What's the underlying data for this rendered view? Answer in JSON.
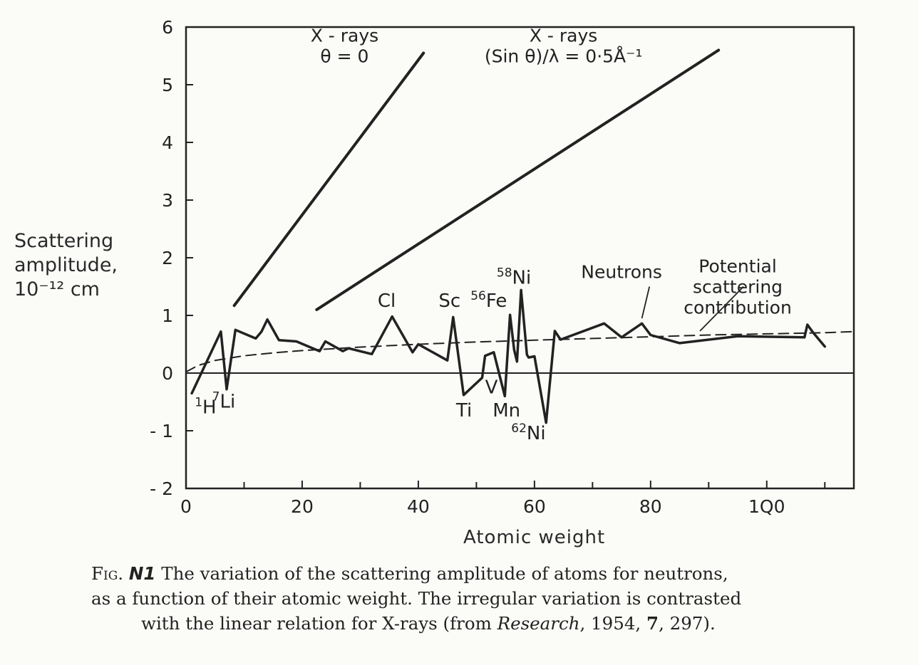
{
  "chart_data": {
    "type": "line",
    "xlabel": "Atomic weight",
    "ylabel_lines": [
      "Scattering",
      "amplitude,",
      "10⁻¹² cm"
    ],
    "xlim": [
      0,
      115
    ],
    "ylim": [
      -2,
      6
    ],
    "x_ticks": [
      {
        "value": 0,
        "label": "0"
      },
      {
        "value": 20,
        "label": "20"
      },
      {
        "value": 40,
        "label": "40"
      },
      {
        "value": 60,
        "label": "60"
      },
      {
        "value": 80,
        "label": "80"
      },
      {
        "value": 100,
        "label": "1Q0"
      }
    ],
    "x_minor_ticks": [
      10,
      30,
      50,
      70,
      90,
      110
    ],
    "y_ticks": [
      {
        "value": 6,
        "label": "6"
      },
      {
        "value": 5,
        "label": "5"
      },
      {
        "value": 4,
        "label": "4"
      },
      {
        "value": 3,
        "label": "3"
      },
      {
        "value": 2,
        "label": "2"
      },
      {
        "value": 1,
        "label": "1"
      },
      {
        "value": 0,
        "label": "0"
      },
      {
        "value": -1,
        "label": "- 1"
      },
      {
        "value": -2,
        "label": "- 2"
      }
    ],
    "grid": false,
    "series": [
      {
        "name": "Neutrons",
        "style": "solid",
        "x": [
          1,
          6,
          7,
          8.5,
          12,
          13,
          14,
          16,
          19,
          23,
          24,
          27,
          28,
          32,
          35.5,
          39,
          40,
          45,
          46,
          47.8,
          51,
          51.5,
          53,
          54.9,
          55.8,
          56.5,
          57,
          57.7,
          58.7,
          59,
          60,
          62,
          63.5,
          64.5,
          72,
          75,
          78.5,
          80,
          85,
          95,
          106.5,
          107,
          108,
          110
        ],
        "y": [
          -0.35,
          0.72,
          -0.28,
          0.75,
          0.6,
          0.72,
          0.93,
          0.57,
          0.55,
          0.38,
          0.55,
          0.38,
          0.43,
          0.33,
          0.98,
          0.36,
          0.5,
          0.22,
          0.97,
          -0.38,
          -0.08,
          0.3,
          0.36,
          -0.4,
          1.01,
          0.4,
          0.2,
          1.44,
          0.32,
          0.27,
          0.29,
          -0.86,
          0.73,
          0.58,
          0.86,
          0.62,
          0.86,
          0.66,
          0.52,
          0.64,
          0.62,
          0.84,
          0.7,
          0.46
        ]
      },
      {
        "name": "X-rays θ=0",
        "style": "solid",
        "x": [
          8.3,
          40.9
        ],
        "y": [
          1.17,
          5.55
        ]
      },
      {
        "name": "X-rays (Sin θ)/λ=0·5Å⁻¹",
        "style": "solid",
        "x": [
          22.5,
          91.7
        ],
        "y": [
          1.1,
          5.6
        ]
      },
      {
        "name": "Potential scattering contribution",
        "style": "dashed",
        "x": [
          0,
          2,
          5,
          10,
          15,
          20,
          30,
          40,
          50,
          60,
          70,
          80,
          90,
          100,
          110,
          115
        ],
        "y": [
          0.02,
          0.13,
          0.22,
          0.3,
          0.35,
          0.39,
          0.45,
          0.5,
          0.54,
          0.57,
          0.6,
          0.63,
          0.66,
          0.68,
          0.7,
          0.72
        ]
      }
    ],
    "point_labels": [
      {
        "x": 1.5,
        "y": -0.7,
        "label": "H",
        "sup": "1"
      },
      {
        "x": 4.5,
        "y": -0.6,
        "label": "Li",
        "sup": "7"
      },
      {
        "x": 33,
        "y": 1.15,
        "label": "Cl",
        "sup": ""
      },
      {
        "x": 43.5,
        "y": 1.15,
        "label": "Sc",
        "sup": ""
      },
      {
        "x": 49,
        "y": 1.15,
        "label": "Fe",
        "sup": "56"
      },
      {
        "x": 53.5,
        "y": 1.55,
        "label": "Ni",
        "sup": "58"
      },
      {
        "x": 46.5,
        "y": -0.75,
        "label": "Ti",
        "sup": ""
      },
      {
        "x": 51.5,
        "y": -0.35,
        "label": "V",
        "sup": ""
      },
      {
        "x": 52.8,
        "y": -0.75,
        "label": "Mn",
        "sup": ""
      },
      {
        "x": 56,
        "y": -1.15,
        "label": "Ni",
        "sup": "62"
      }
    ],
    "annotations": [
      {
        "id": "neutrons",
        "lines": [
          "Neutrons"
        ],
        "x": 75,
        "y": 1.65,
        "leader_to": [
          78.5,
          0.95
        ],
        "leader_from": [
          79.8,
          1.5
        ]
      },
      {
        "id": "potential",
        "lines": [
          "Potential",
          "scattering",
          "contribution"
        ],
        "x": 95,
        "y": 1.75,
        "leader_to": [
          88.5,
          0.73
        ],
        "leader_from": [
          96,
          1.5
        ]
      },
      {
        "id": "xrays-theta0",
        "lines": [
          "X - rays",
          "θ = 0"
        ],
        "x": 27.3,
        "y": 5.75,
        "leader_to": null,
        "leader_from": null
      },
      {
        "id": "xrays-sin",
        "lines": [
          "X - rays",
          "(Sin θ)/λ = 0·5Å⁻¹"
        ],
        "x": 65,
        "y": 5.75,
        "leader_to": null,
        "leader_from": null
      }
    ]
  },
  "caption": {
    "prefix": "Fig.",
    "number": "N1",
    "line1_rest": " The variation of the scattering amplitude of atoms for neutrons,",
    "line2": "as a function of their atomic weight.  The irregular variation is contrasted",
    "line3_a": "with the linear relation for X-rays (from ",
    "line3_journal": "Research",
    "line3_b": ", 1954, ",
    "line3_volume": "7",
    "line3_c": ", 297)."
  }
}
